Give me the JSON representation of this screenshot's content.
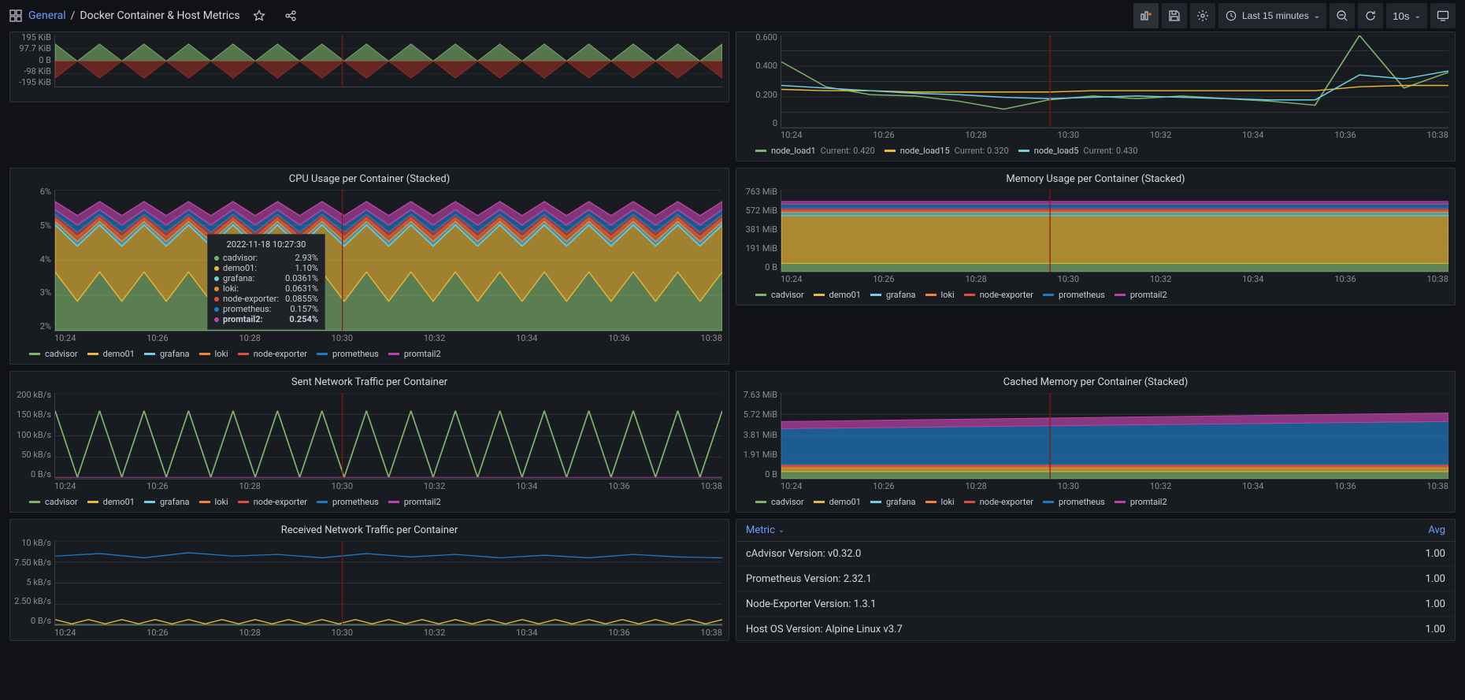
{
  "header": {
    "breadcrumb_folder": "General",
    "breadcrumb_dash": "Docker Container & Host Metrics",
    "time_range": "Last 15 minutes",
    "refresh_interval": "10s"
  },
  "palette": {
    "cadvisor": "#7eb26d",
    "demo01": "#eab839",
    "grafana": "#6ed0e0",
    "loki": "#ef843c",
    "node_exporter": "#e24d42",
    "prometheus": "#1f78c1",
    "promtail2": "#ba43a9",
    "load1": "#7eb26d",
    "load15": "#eab839",
    "load5": "#6ed0e0",
    "grid": "#2c3235",
    "bg": "#181b1f"
  },
  "time_axis": [
    "10:24",
    "10:26",
    "10:28",
    "10:30",
    "10:32",
    "10:34",
    "10:36",
    "10:38"
  ],
  "panels": {
    "top_left": {
      "type": "area-mirror",
      "y_ticks": [
        "195 KiB",
        "97.7 KiB",
        "0 B",
        "-98 KiB",
        "-195 KiB"
      ],
      "pos": {
        "color": "#7eb26d"
      },
      "neg": {
        "color": "#9b2e24"
      }
    },
    "load": {
      "type": "line",
      "y_ticks": [
        "0.600",
        "",
        "0.400",
        "",
        "0.200",
        "",
        "0"
      ],
      "legend": [
        {
          "label": "node_load1",
          "color": "#7eb26d",
          "extra": "Current: 0.420"
        },
        {
          "label": "node_load15",
          "color": "#eab839",
          "extra": "Current: 0.320"
        },
        {
          "label": "node_load5",
          "color": "#6ed0e0",
          "extra": "Current: 0.430"
        }
      ],
      "series": {
        "load1": [
          0.5,
          0.31,
          0.25,
          0.24,
          0.2,
          0.14,
          0.21,
          0.24,
          0.22,
          0.24,
          0.22,
          0.2,
          0.17,
          0.7,
          0.3,
          0.42
        ],
        "load15": [
          0.29,
          0.28,
          0.28,
          0.27,
          0.27,
          0.27,
          0.27,
          0.28,
          0.28,
          0.28,
          0.28,
          0.28,
          0.28,
          0.31,
          0.32,
          0.32
        ],
        "load5": [
          0.32,
          0.3,
          0.28,
          0.26,
          0.25,
          0.23,
          0.22,
          0.23,
          0.24,
          0.23,
          0.22,
          0.21,
          0.21,
          0.4,
          0.37,
          0.43
        ]
      },
      "ylim": [
        0,
        0.7
      ]
    },
    "cpu": {
      "title": "CPU Usage per Container (Stacked)",
      "type": "area-stacked",
      "y_ticks": [
        "6%",
        "5%",
        "4%",
        "3%",
        "2%"
      ],
      "legend_keys": [
        "cadvisor",
        "demo01",
        "grafana",
        "loki",
        "node_exporter",
        "prometheus",
        "promtail2"
      ],
      "tooltip": {
        "time": "2022-11-18 10:27:30",
        "rows": [
          {
            "k": "cadvisor",
            "v": "2.93%",
            "c": "#7eb26d"
          },
          {
            "k": "demo01",
            "v": "1.10%",
            "c": "#eab839"
          },
          {
            "k": "grafana",
            "v": "0.0361%",
            "c": "#6ed0e0"
          },
          {
            "k": "loki",
            "v": "0.0631%",
            "c": "#ef843c"
          },
          {
            "k": "node-exporter",
            "v": "0.0855%",
            "c": "#e24d42"
          },
          {
            "k": "prometheus",
            "v": "0.157%",
            "c": "#1f78c1"
          },
          {
            "k": "promtail2",
            "v": "0.254%",
            "c": "#ba43a9",
            "bold": true
          }
        ]
      }
    },
    "mem": {
      "title": "Memory Usage per Container (Stacked)",
      "type": "area-stacked",
      "y_ticks": [
        "763 MiB",
        "572 MiB",
        "381 MiB",
        "191 MiB",
        "0 B"
      ],
      "legend_keys": [
        "cadvisor",
        "demo01",
        "grafana",
        "loki",
        "node_exporter",
        "prometheus",
        "promtail2"
      ]
    },
    "sent": {
      "title": "Sent Network Traffic per Container",
      "type": "line",
      "y_ticks": [
        "200 kB/s",
        "150 kB/s",
        "100 kB/s",
        "50 kB/s",
        "0 B/s"
      ],
      "legend_keys": [
        "cadvisor",
        "demo01",
        "grafana",
        "loki",
        "node_exporter",
        "prometheus",
        "promtail2"
      ]
    },
    "cached": {
      "title": "Cached Memory per Container (Stacked)",
      "type": "area-stacked",
      "y_ticks": [
        "7.63 MiB",
        "5.72 MiB",
        "3.81 MiB",
        "1.91 MiB",
        "0 B"
      ],
      "legend_keys": [
        "cadvisor",
        "demo01",
        "grafana",
        "loki",
        "node_exporter",
        "prometheus",
        "promtail2"
      ]
    },
    "recv": {
      "title": "Received Network Traffic per Container",
      "type": "line",
      "y_ticks": [
        "10 kB/s",
        "7.50 kB/s",
        "5 kB/s",
        "2.50 kB/s",
        "0 B/s"
      ],
      "legend_keys": [
        "cadvisor",
        "demo01",
        "grafana",
        "loki",
        "node_exporter",
        "prometheus",
        "promtail2"
      ]
    },
    "table": {
      "col_metric": "Metric",
      "col_avg": "Avg",
      "rows": [
        {
          "metric": "cAdvisor Version: v0.32.0",
          "avg": "1.00"
        },
        {
          "metric": "Prometheus Version: 2.32.1",
          "avg": "1.00"
        },
        {
          "metric": "Node-Exporter Version: 1.3.1",
          "avg": "1.00"
        },
        {
          "metric": "Host OS Version: Alpine Linux v3.7",
          "avg": "1.00"
        }
      ]
    }
  },
  "container_labels": {
    "cadvisor": "cadvisor",
    "demo01": "demo01",
    "grafana": "grafana",
    "loki": "loki",
    "node_exporter": "node-exporter",
    "prometheus": "prometheus",
    "promtail2": "promtail2"
  }
}
